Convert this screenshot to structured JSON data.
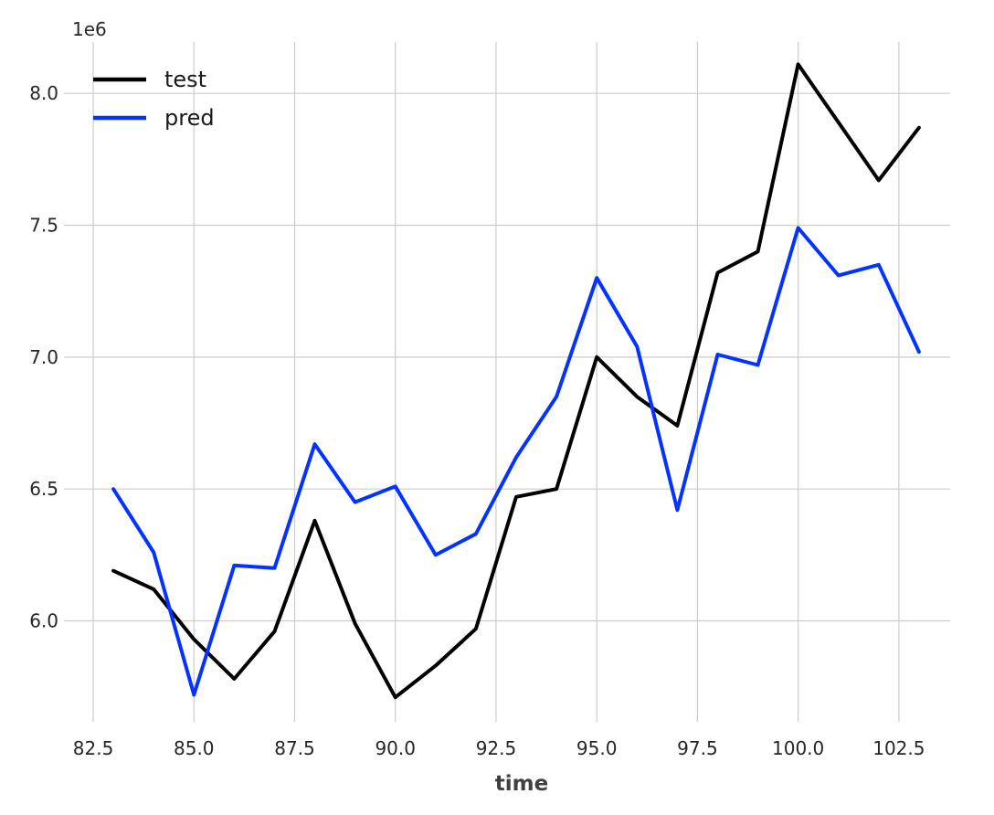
{
  "chart_data": {
    "type": "line",
    "x": [
      83,
      84,
      85,
      86,
      87,
      88,
      89,
      90,
      91,
      92,
      93,
      94,
      95,
      96,
      97,
      98,
      99,
      100,
      101,
      102,
      103
    ],
    "series": [
      {
        "name": "test",
        "color": "#000000",
        "values": [
          6190000,
          6120000,
          5930000,
          5780000,
          5960000,
          6380000,
          5990000,
          5710000,
          5830000,
          5970000,
          6470000,
          6500000,
          7000000,
          6850000,
          6740000,
          7320000,
          7400000,
          8110000,
          7890000,
          7670000,
          7870000
        ]
      },
      {
        "name": "pred",
        "color": "#0433ff",
        "values": [
          6500000,
          6260000,
          5720000,
          6210000,
          6200000,
          6670000,
          6450000,
          6510000,
          6250000,
          6330000,
          6620000,
          6850000,
          7300000,
          7040000,
          6420000,
          7010000,
          6970000,
          7490000,
          7310000,
          7350000,
          7020000
        ]
      }
    ],
    "xticks": [
      82.5,
      85.0,
      87.5,
      90.0,
      92.5,
      95.0,
      97.5,
      100.0,
      102.5
    ],
    "xtick_labels": [
      "82.5",
      "85.0",
      "87.5",
      "90.0",
      "92.5",
      "95.0",
      "97.5",
      "100.0",
      "102.5"
    ],
    "yticks": [
      6.0,
      6.5,
      7.0,
      7.5,
      8.0
    ],
    "ytick_labels": [
      "6.0",
      "6.5",
      "7.0",
      "7.5",
      "8.0"
    ],
    "y_scale_factor": 1000000,
    "y_offset_label": "1e6",
    "xlim": [
      82.0,
      104.0
    ],
    "ylim": [
      5.6,
      8.25
    ],
    "xlabel": "time",
    "ylabel": "",
    "title": "",
    "grid": true,
    "legend_position": "top-left"
  }
}
